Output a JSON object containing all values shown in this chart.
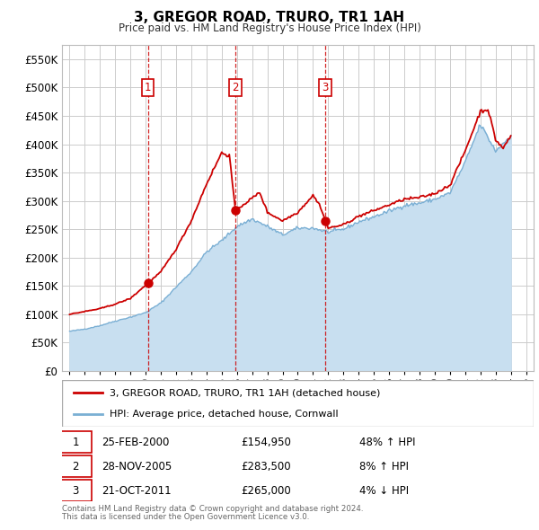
{
  "title": "3, GREGOR ROAD, TRURO, TR1 1AH",
  "subtitle": "Price paid vs. HM Land Registry's House Price Index (HPI)",
  "legend_line1": "3, GREGOR ROAD, TRURO, TR1 1AH (detached house)",
  "legend_line2": "HPI: Average price, detached house, Cornwall",
  "footer1": "Contains HM Land Registry data © Crown copyright and database right 2024.",
  "footer2": "This data is licensed under the Open Government Licence v3.0.",
  "transactions": [
    {
      "num": 1,
      "date": "25-FEB-2000",
      "price": 154950,
      "hpi_pct": "48% ↑ HPI",
      "x": 2000.15
    },
    {
      "num": 2,
      "date": "28-NOV-2005",
      "price": 283500,
      "hpi_pct": "8% ↑ HPI",
      "x": 2005.9
    },
    {
      "num": 3,
      "date": "21-OCT-2011",
      "price": 265000,
      "hpi_pct": "4% ↓ HPI",
      "x": 2011.8
    }
  ],
  "price_color": "#cc0000",
  "hpi_color": "#7aafd4",
  "hpi_fill_color": "#c8dff0",
  "vline_color": "#cc0000",
  "background_color": "#ffffff",
  "plot_bg_color": "#ffffff",
  "grid_color": "#cccccc",
  "ylim": [
    0,
    575000
  ],
  "yticks": [
    0,
    50000,
    100000,
    150000,
    200000,
    250000,
    300000,
    350000,
    400000,
    450000,
    500000,
    550000
  ],
  "xlim": [
    1994.5,
    2025.5
  ],
  "xticks": [
    1995,
    1996,
    1997,
    1998,
    1999,
    2000,
    2001,
    2002,
    2003,
    2004,
    2005,
    2006,
    2007,
    2008,
    2009,
    2010,
    2011,
    2012,
    2013,
    2014,
    2015,
    2016,
    2017,
    2018,
    2019,
    2020,
    2021,
    2022,
    2023,
    2024,
    2025
  ]
}
